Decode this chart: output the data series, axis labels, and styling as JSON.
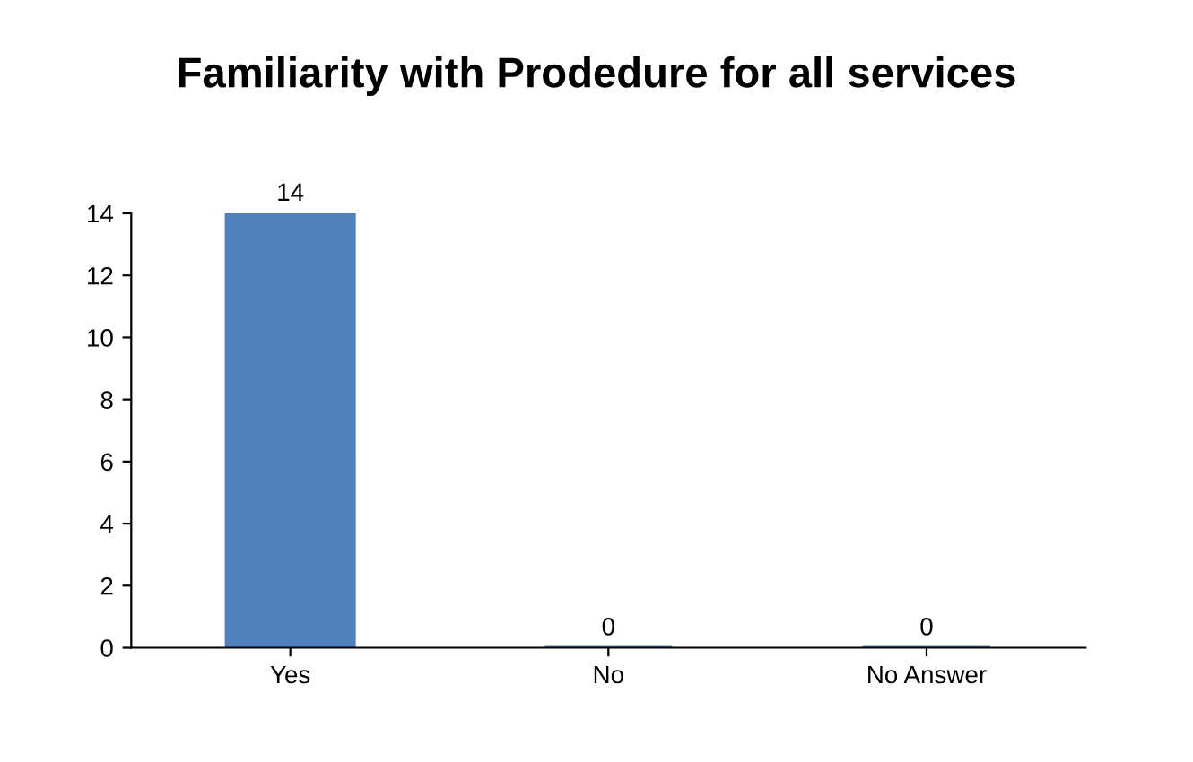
{
  "chart_data": {
    "type": "bar",
    "title": "Familiarity with Prodedure for all services",
    "categories": [
      "Yes",
      "No",
      "No Answer"
    ],
    "values": [
      14,
      0,
      0
    ],
    "color": "#4f81bd",
    "ylim": [
      0,
      14
    ],
    "yticks": [
      0,
      2,
      4,
      6,
      8,
      10,
      12,
      14
    ],
    "data_labels": true,
    "grid": false,
    "legend": false
  }
}
